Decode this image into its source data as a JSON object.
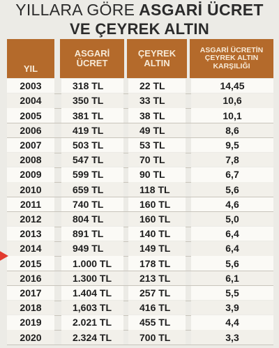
{
  "title": {
    "line1_a": "YILLARA GÖRE",
    "line1_b": "ASGARİ ÜCRET",
    "line2": "VE ÇEYREK ALTIN"
  },
  "headers": {
    "year": "YIL",
    "ucret_1": "ASGARİ",
    "ucret_2": "ÜCRET",
    "altin_1": "ÇEYREK",
    "altin_2": "ALTIN",
    "oran_1": "ASGARİ ÜCRETİN",
    "oran_2": "ÇEYREK ALTIN",
    "oran_3": "KARŞILIĞI"
  },
  "colors": {
    "header_bg": "#b46a2b",
    "header_text": "#f7ead7",
    "highlight_arrow": "#e23a2e"
  },
  "highlighted_year": "2014",
  "rows": [
    {
      "year": "2003",
      "ucret": "318 TL",
      "altin": "22 TL",
      "oran": "14,45"
    },
    {
      "year": "2004",
      "ucret": "350 TL",
      "altin": "33 TL",
      "oran": "10,6"
    },
    {
      "year": "2005",
      "ucret": "381 TL",
      "altin": "38 TL",
      "oran": "10,1"
    },
    {
      "year": "2006",
      "ucret": "419 TL",
      "altin": "49 TL",
      "oran": "8,6"
    },
    {
      "year": "2007",
      "ucret": "503 TL",
      "altin": "53 TL",
      "oran": "9,5"
    },
    {
      "year": "2008",
      "ucret": "547 TL",
      "altin": "70 TL",
      "oran": "7,8"
    },
    {
      "year": "2009",
      "ucret": "599 TL",
      "altin": "90 TL",
      "oran": "6,7"
    },
    {
      "year": "2010",
      "ucret": "659 TL",
      "altin": "118 TL",
      "oran": "5,6"
    },
    {
      "year": "2011",
      "ucret": "740 TL",
      "altin": "160 TL",
      "oran": "4,6"
    },
    {
      "year": "2012",
      "ucret": "804 TL",
      "altin": "160 TL",
      "oran": "5,0"
    },
    {
      "year": "2013",
      "ucret": "891 TL",
      "altin": "140 TL",
      "oran": "6,4"
    },
    {
      "year": "2014",
      "ucret": "949 TL",
      "altin": "149 TL",
      "oran": "6,4"
    },
    {
      "year": "2015",
      "ucret": "1.000 TL",
      "altin": "178 TL",
      "oran": "5,6"
    },
    {
      "year": "2016",
      "ucret": "1.300 TL",
      "altin": "213 TL",
      "oran": "6,1"
    },
    {
      "year": "2017",
      "ucret": "1.404 TL",
      "altin": "257 TL",
      "oran": "5,5"
    },
    {
      "year": "2018",
      "ucret": "1,603 TL",
      "altin": "416 TL",
      "oran": "3,9"
    },
    {
      "year": "2019",
      "ucret": "2.021 TL",
      "altin": "455 TL",
      "oran": "4,4"
    },
    {
      "year": "2020",
      "ucret": "2.324 TL",
      "altin": "700 TL",
      "oran": "3,3"
    }
  ]
}
